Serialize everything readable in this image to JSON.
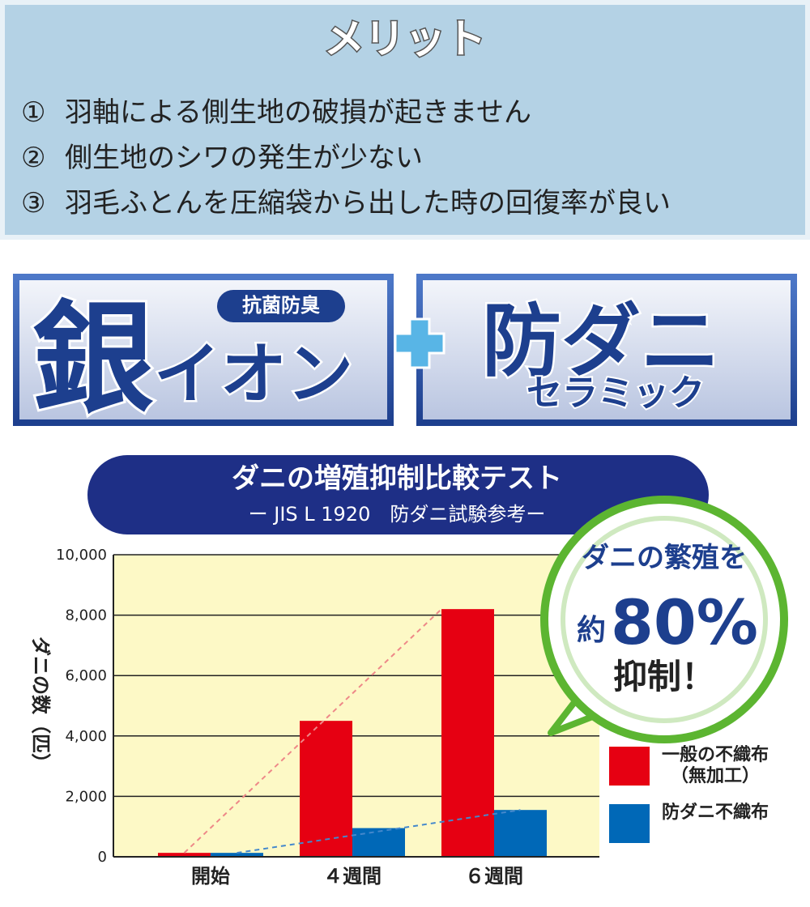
{
  "merit": {
    "title": "メリット",
    "items": [
      {
        "marker": "①",
        "text": "羽軸による側生地の破損が起きません"
      },
      {
        "marker": "②",
        "text": "側生地のシワの発生が少ない"
      },
      {
        "marker": "③",
        "text": "羽毛ふとんを圧縮袋から出した時の回復率が良い"
      }
    ]
  },
  "banners": {
    "badge": "抗菌防臭",
    "silver": "銀",
    "ion": "イオン",
    "antimite": "防ダニ",
    "ceramic": "セラミック"
  },
  "callout": {
    "line1": "ダニの繁殖を",
    "prefix": "約",
    "figure": "80%",
    "line3": "抑制！"
  },
  "chart_data": {
    "type": "bar",
    "title": "ダニの増殖抑制比較テスト",
    "subtitle": "ー JIS L 1920　防ダニ試験参考ー",
    "y_label": "ダニの数（匹）",
    "categories": [
      "開始",
      "４週間",
      "６週間"
    ],
    "series": [
      {
        "name": "一般の不織布（無加工）",
        "color": "#e60012",
        "values": [
          130,
          4500,
          8200
        ]
      },
      {
        "name": "防ダニ不織布",
        "color": "#0068b7",
        "values": [
          130,
          950,
          1550
        ]
      }
    ],
    "ylim": [
      0,
      10000
    ],
    "yticks": [
      0,
      {
        "value": 2000,
        "label": "2,000"
      },
      {
        "value": 4000,
        "label": "4,000"
      },
      {
        "value": 6000,
        "label": "6,000"
      },
      {
        "value": 8000,
        "label": "8,000"
      },
      {
        "value": 10000,
        "label": "10,000"
      }
    ],
    "grid": true
  }
}
